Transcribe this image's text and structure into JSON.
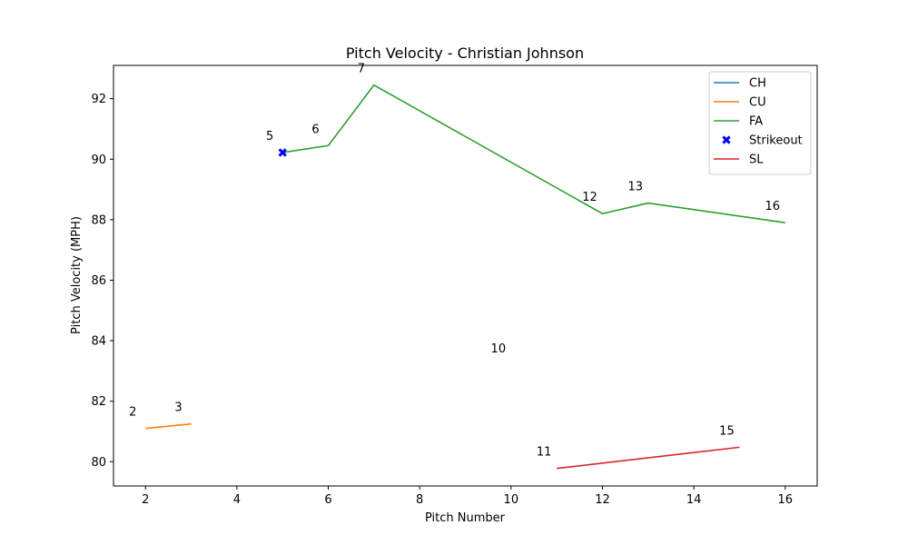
{
  "chart_data": {
    "type": "line",
    "title": "Pitch Velocity - Christian Johnson",
    "xlabel": "Pitch Number",
    "ylabel": "Pitch Velocity (MPH)",
    "xlim": [
      1.3,
      16.7
    ],
    "ylim": [
      79.2,
      93.1
    ],
    "xticks": [
      2,
      4,
      6,
      8,
      10,
      12,
      14,
      16
    ],
    "yticks": [
      80,
      82,
      84,
      86,
      88,
      90,
      92
    ],
    "grid": false,
    "legend_position": "top-right",
    "series": [
      {
        "name": "CH",
        "color": "#1f77b4",
        "points": [
          {
            "x": 10,
            "y": 83.2
          }
        ]
      },
      {
        "name": "CU",
        "color": "#ff7f0e",
        "points": [
          {
            "x": 2,
            "y": 81.1
          },
          {
            "x": 3,
            "y": 81.25
          }
        ]
      },
      {
        "name": "FA",
        "color": "#2ca02c",
        "points": [
          {
            "x": 5,
            "y": 90.22
          },
          {
            "x": 6,
            "y": 90.45
          },
          {
            "x": 7,
            "y": 92.45
          },
          {
            "x": 12,
            "y": 88.2
          },
          {
            "x": 13,
            "y": 88.55
          },
          {
            "x": 16,
            "y": 87.9
          }
        ]
      },
      {
        "name": "SL",
        "color": "#d62728",
        "points": [
          {
            "x": 11,
            "y": 79.78
          },
          {
            "x": 15,
            "y": 80.48
          }
        ]
      }
    ],
    "strikeouts": {
      "name": "Strikeout",
      "color": "#0000ff",
      "points": [
        {
          "x": 5,
          "y": 90.22
        }
      ]
    },
    "annotations": [
      {
        "text": "2",
        "x": 2,
        "y": 81.1
      },
      {
        "text": "3",
        "x": 3,
        "y": 81.25
      },
      {
        "text": "5",
        "x": 5,
        "y": 90.22
      },
      {
        "text": "6",
        "x": 6,
        "y": 90.45
      },
      {
        "text": "7",
        "x": 7,
        "y": 92.45
      },
      {
        "text": "10",
        "x": 10,
        "y": 83.2
      },
      {
        "text": "11",
        "x": 11,
        "y": 79.78
      },
      {
        "text": "12",
        "x": 12,
        "y": 88.2
      },
      {
        "text": "13",
        "x": 13,
        "y": 88.55
      },
      {
        "text": "15",
        "x": 15,
        "y": 80.48
      },
      {
        "text": "16",
        "x": 16,
        "y": 87.9
      }
    ],
    "legend": [
      "CH",
      "CU",
      "FA",
      "Strikeout",
      "SL"
    ]
  }
}
